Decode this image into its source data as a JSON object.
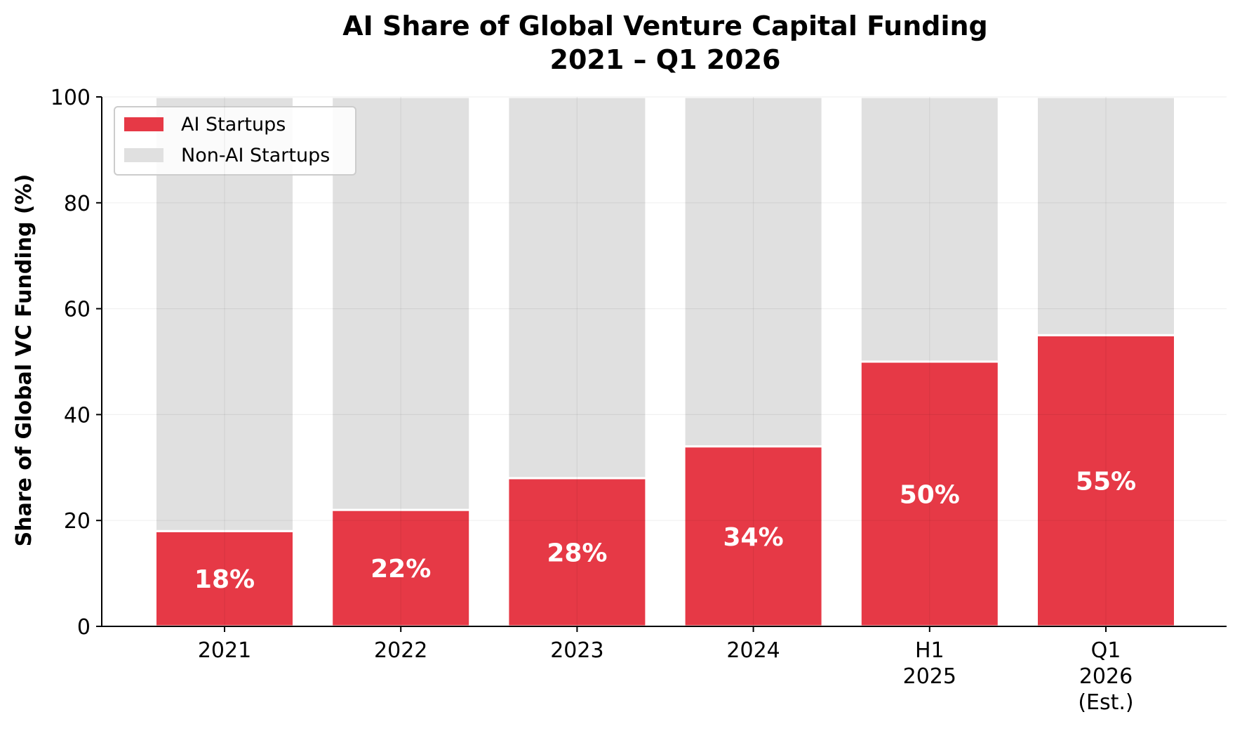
{
  "chart_data": {
    "type": "bar",
    "stacked": true,
    "title": "AI Share of Global Venture Capital Funding",
    "subtitle": "2021 – Q1 2026",
    "xlabel": "",
    "ylabel": "Share of Global VC Funding (%)",
    "ylim": [
      0,
      100
    ],
    "yticks": [
      0,
      20,
      40,
      60,
      80,
      100
    ],
    "grid": true,
    "legend_position": "top-left",
    "categories": [
      [
        "2021"
      ],
      [
        "2022"
      ],
      [
        "2023"
      ],
      [
        "2024"
      ],
      [
        "H1",
        "2025"
      ],
      [
        "Q1",
        "2026",
        "(Est.)"
      ]
    ],
    "series": [
      {
        "name": "AI Startups",
        "color": "#e63946",
        "values": [
          18,
          22,
          28,
          34,
          50,
          55
        ]
      },
      {
        "name": "Non-AI Startups",
        "color": "#e0e0e0",
        "values": [
          82,
          78,
          72,
          66,
          50,
          45
        ]
      }
    ],
    "data_labels": [
      "18%",
      "22%",
      "28%",
      "34%",
      "50%",
      "55%"
    ]
  }
}
